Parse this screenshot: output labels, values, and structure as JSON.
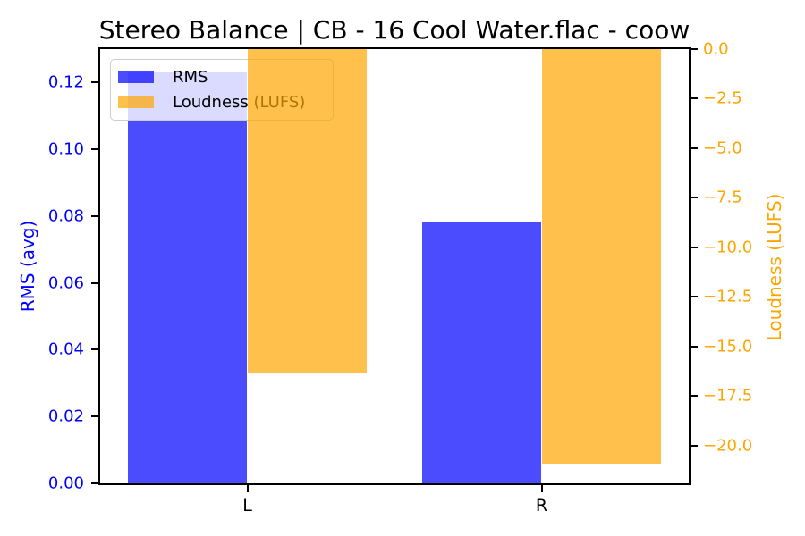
{
  "title": "Stereo Balance | CB - 16 Cool Water.flac - coow",
  "chart_data": {
    "type": "bar",
    "categories": [
      "L",
      "R"
    ],
    "series": [
      {
        "name": "RMS",
        "axis": "left",
        "color": "rgba(0,0,255,0.7)",
        "values": [
          0.123,
          0.078
        ]
      },
      {
        "name": "Loudness (LUFS)",
        "axis": "right",
        "color": "rgba(255,165,0,0.7)",
        "values": [
          -16.3,
          -20.9
        ]
      }
    ],
    "left_axis": {
      "label": "RMS (avg)",
      "color": "#0000ff",
      "range": [
        0,
        0.13
      ],
      "ticks": [
        0,
        0.02,
        0.04,
        0.06,
        0.08,
        0.1,
        0.12
      ],
      "tick_labels": [
        "0.00",
        "0.02",
        "0.04",
        "0.06",
        "0.08",
        "0.10",
        "0.12"
      ]
    },
    "right_axis": {
      "label": "Loudness (LUFS)",
      "color": "#ffa500",
      "range": [
        0,
        -21.9
      ],
      "ticks": [
        0,
        -2.5,
        -5,
        -7.5,
        -10,
        -12.5,
        -15,
        -17.5,
        -20
      ],
      "tick_labels": [
        "0.0",
        "−2.5",
        "−5.0",
        "−7.5",
        "−10.0",
        "−12.5",
        "−15.0",
        "−17.5",
        "−20.0"
      ]
    },
    "legend": {
      "position": "upper-left",
      "entries": [
        "RMS",
        "Loudness (LUFS)"
      ]
    },
    "bar_width_frac": 0.2025,
    "grid": false
  }
}
